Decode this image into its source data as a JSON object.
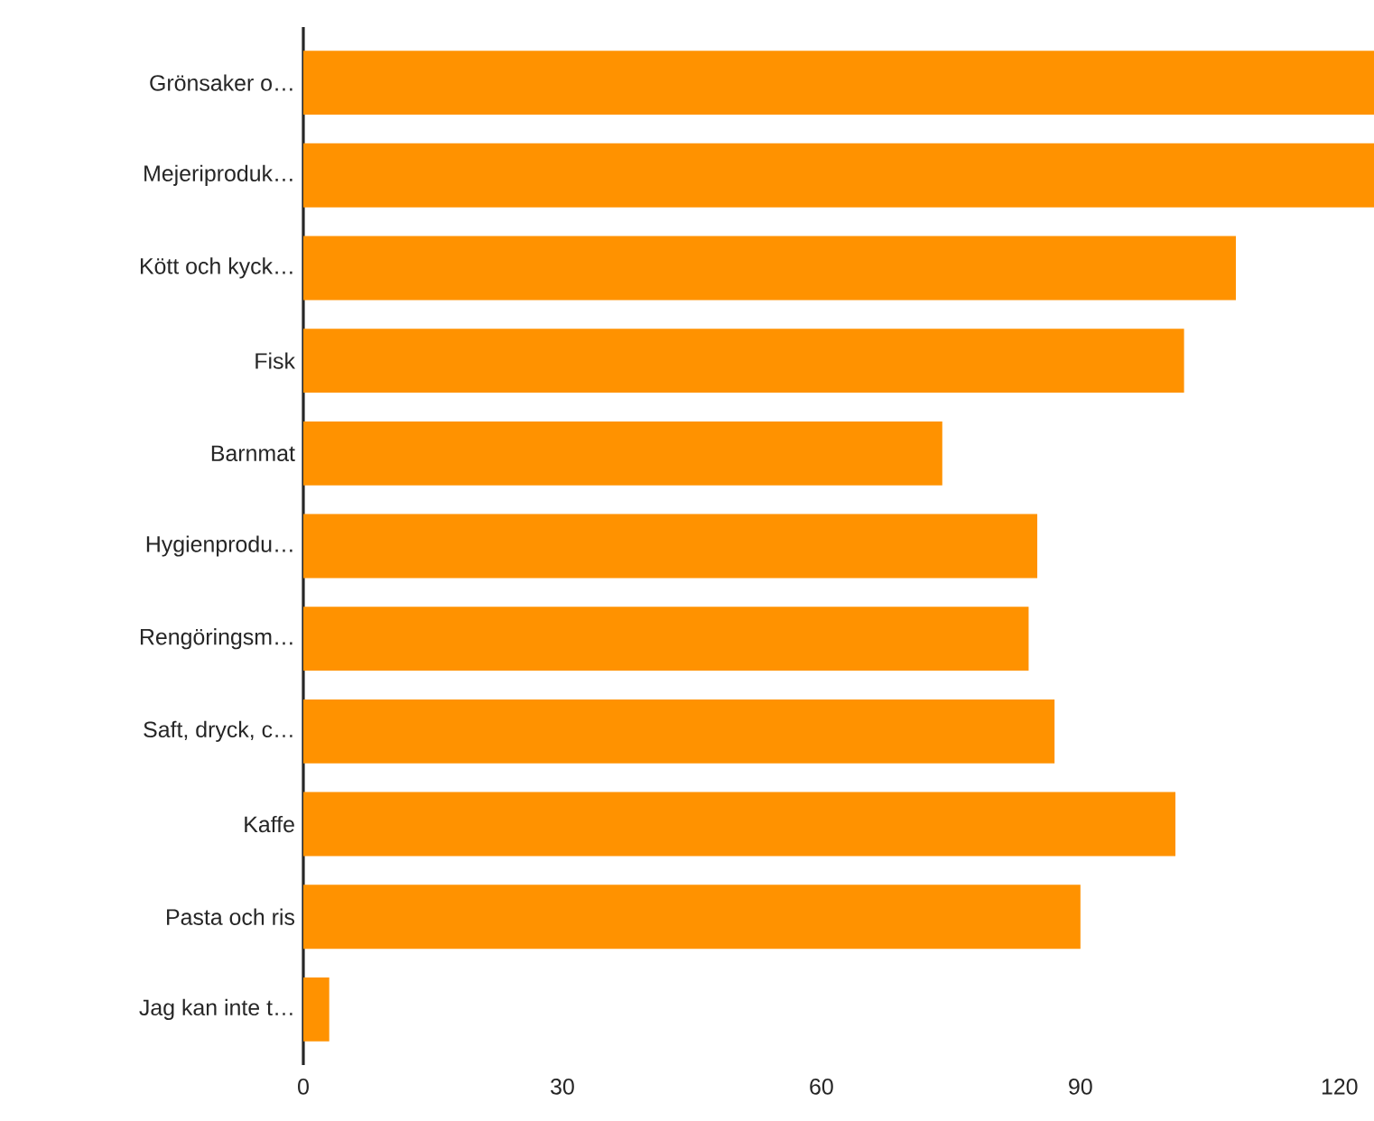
{
  "chart_data": {
    "type": "bar",
    "orientation": "horizontal",
    "categories": [
      "Grönsaker o…",
      "Mejeriproduk…",
      "Kött och kyck…",
      "Fisk",
      "Barnmat",
      "Hygienprodu…",
      "Rengöringsm…",
      "Saft, dryck, c…",
      "Kaffe",
      "Pasta och ris",
      "Jag kan inte t…"
    ],
    "values": [
      124,
      124,
      108,
      102,
      74,
      85,
      84,
      87,
      101,
      90,
      3
    ],
    "color": "#ff9200",
    "xlim": [
      0,
      124
    ],
    "xticks": [
      0,
      30,
      60,
      90,
      120
    ]
  }
}
